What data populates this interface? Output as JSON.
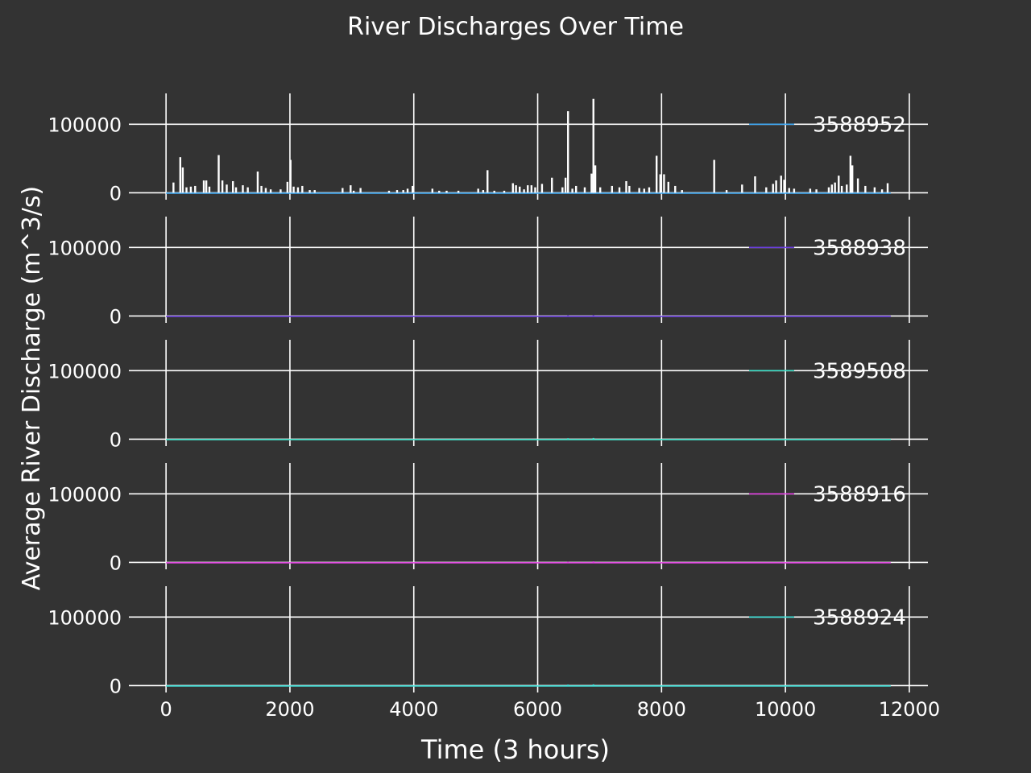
{
  "chart_data": {
    "type": "line",
    "title": "River Discharges Over Time",
    "xlabel": "Time (3 hours)",
    "ylabel": "Average River Discharge (m^3/s)",
    "xlim": [
      -600,
      12300
    ],
    "ylim": [
      -3000,
      145000
    ],
    "xticks": [
      0,
      2000,
      4000,
      6000,
      8000,
      10000,
      12000
    ],
    "xtick_labels": [
      "0",
      "2000",
      "4000",
      "6000",
      "8000",
      "10000",
      "12000"
    ],
    "yticks": [
      0,
      100000
    ],
    "ytick_labels": [
      "0",
      "100000"
    ],
    "grid": true,
    "legend_position": "right",
    "colors": {
      "background": "#333333",
      "foreground": "#ffffff",
      "spike_series": "#ffffff"
    },
    "series": [
      {
        "name": "3588952",
        "color": "#3fa9f5",
        "peaks": [
          [
            120,
            15000
          ],
          [
            230,
            52000
          ],
          [
            270,
            37000
          ],
          [
            330,
            8000
          ],
          [
            400,
            9000
          ],
          [
            470,
            10000
          ],
          [
            610,
            18000
          ],
          [
            650,
            18000
          ],
          [
            700,
            9000
          ],
          [
            850,
            55000
          ],
          [
            910,
            18000
          ],
          [
            980,
            12000
          ],
          [
            1080,
            17000
          ],
          [
            1130,
            8000
          ],
          [
            1240,
            11000
          ],
          [
            1320,
            8000
          ],
          [
            1480,
            31000
          ],
          [
            1540,
            10000
          ],
          [
            1610,
            7000
          ],
          [
            1690,
            5000
          ],
          [
            1850,
            5000
          ],
          [
            1960,
            16000
          ],
          [
            2010,
            48000
          ],
          [
            2060,
            9000
          ],
          [
            2130,
            8000
          ],
          [
            2200,
            10000
          ],
          [
            2320,
            4000
          ],
          [
            2400,
            4000
          ],
          [
            2850,
            7000
          ],
          [
            2980,
            11000
          ],
          [
            3030,
            3000
          ],
          [
            3140,
            7000
          ],
          [
            3600,
            3000
          ],
          [
            3730,
            4000
          ],
          [
            3830,
            4000
          ],
          [
            3900,
            6000
          ],
          [
            3980,
            10000
          ],
          [
            4300,
            6000
          ],
          [
            4410,
            3000
          ],
          [
            4530,
            3000
          ],
          [
            4720,
            3000
          ],
          [
            5040,
            6000
          ],
          [
            5120,
            4000
          ],
          [
            5190,
            33000
          ],
          [
            5300,
            3000
          ],
          [
            5460,
            3000
          ],
          [
            5600,
            14000
          ],
          [
            5650,
            11000
          ],
          [
            5710,
            9000
          ],
          [
            5780,
            5000
          ],
          [
            5840,
            11000
          ],
          [
            5900,
            11000
          ],
          [
            5960,
            8000
          ],
          [
            6070,
            13000
          ],
          [
            6230,
            22000
          ],
          [
            6400,
            8000
          ],
          [
            6450,
            22000
          ],
          [
            6490,
            119000
          ],
          [
            6560,
            6000
          ],
          [
            6620,
            10000
          ],
          [
            6760,
            8000
          ],
          [
            6870,
            28000
          ],
          [
            6900,
            137000
          ],
          [
            6930,
            40000
          ],
          [
            7010,
            8000
          ],
          [
            7200,
            10000
          ],
          [
            7320,
            8000
          ],
          [
            7430,
            17000
          ],
          [
            7480,
            10000
          ],
          [
            7640,
            7000
          ],
          [
            7720,
            6000
          ],
          [
            7800,
            8000
          ],
          [
            7920,
            54000
          ],
          [
            7980,
            27000
          ],
          [
            8040,
            27000
          ],
          [
            8110,
            16000
          ],
          [
            8220,
            10000
          ],
          [
            8330,
            4000
          ],
          [
            8850,
            48000
          ],
          [
            9050,
            4000
          ],
          [
            9300,
            12000
          ],
          [
            9510,
            24000
          ],
          [
            9690,
            8000
          ],
          [
            9800,
            13000
          ],
          [
            9850,
            18000
          ],
          [
            9930,
            25000
          ],
          [
            9980,
            19000
          ],
          [
            10060,
            7000
          ],
          [
            10140,
            6000
          ],
          [
            10400,
            6000
          ],
          [
            10500,
            5000
          ],
          [
            10700,
            8000
          ],
          [
            10750,
            12000
          ],
          [
            10800,
            15000
          ],
          [
            10860,
            25000
          ],
          [
            10910,
            10000
          ],
          [
            10990,
            12000
          ],
          [
            11050,
            54000
          ],
          [
            11080,
            40000
          ],
          [
            11170,
            21000
          ],
          [
            11290,
            10000
          ],
          [
            11440,
            8000
          ],
          [
            11560,
            5000
          ],
          [
            11650,
            14000
          ]
        ]
      },
      {
        "name": "3588938",
        "color": "#6c3fe0",
        "peaks": [
          [
            6490,
            1000
          ],
          [
            6900,
            1200
          ]
        ]
      },
      {
        "name": "3589508",
        "color": "#3fe0c8",
        "peaks": [
          [
            6490,
            1500
          ],
          [
            6900,
            1800
          ]
        ]
      },
      {
        "name": "3588916",
        "color": "#e03fe0",
        "peaks": [
          [
            6490,
            1200
          ],
          [
            6900,
            1500
          ]
        ]
      },
      {
        "name": "3588924",
        "color": "#3fe0d8",
        "peaks": [
          [
            6490,
            1500
          ],
          [
            6900,
            1800
          ]
        ]
      }
    ],
    "x_end": 11700
  }
}
